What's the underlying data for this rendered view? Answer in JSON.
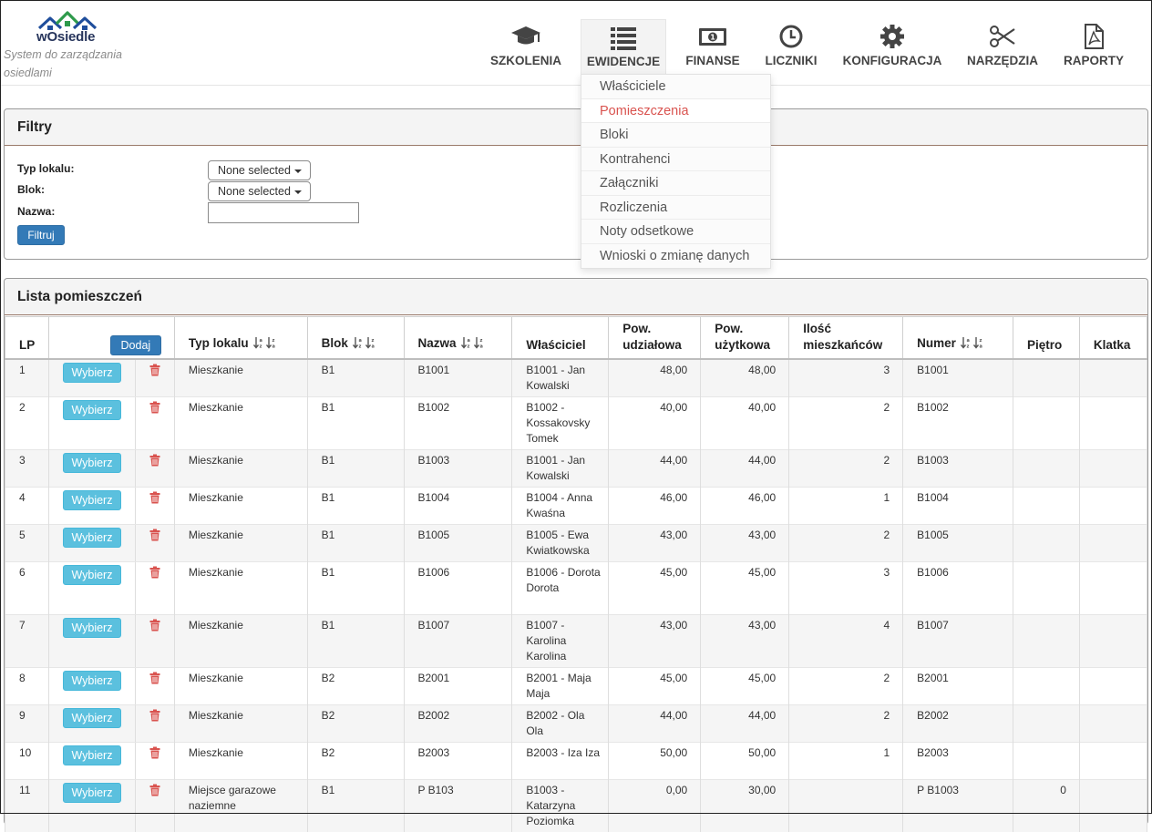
{
  "brand": {
    "name": "wOsiedle",
    "tagline": "System do zarządzania osiedlami"
  },
  "nav": [
    {
      "label": "SZKOLENIA",
      "icon": "graduation-cap-icon"
    },
    {
      "label": "EWIDENCJE",
      "icon": "list-icon",
      "active": true
    },
    {
      "label": "FINANSE",
      "icon": "banknote-icon"
    },
    {
      "label": "LICZNIKI",
      "icon": "clock-icon"
    },
    {
      "label": "KONFIGURACJA",
      "icon": "gear-icon"
    },
    {
      "label": "NARZĘDZIA",
      "icon": "scissors-icon"
    },
    {
      "label": "RAPORTY",
      "icon": "pdf-file-icon"
    }
  ],
  "dropdown": [
    "Właściciele",
    "Pomieszczenia",
    "Bloki",
    "Kontrahenci",
    "Załączniki",
    "Rozliczenia",
    "Noty odsetkowe",
    "Wnioski o zmianę danych"
  ],
  "dropdown_highlight": "Pomieszczenia",
  "filters": {
    "title": "Filtry",
    "typ_label": "Typ lokalu:",
    "blok_label": "Blok:",
    "nazwa_label": "Nazwa:",
    "typ_value": "None selected",
    "blok_value": "None selected",
    "nazwa_value": "",
    "submit": "Filtruj"
  },
  "list": {
    "title": "Lista pomieszczeń",
    "add": "Dodaj",
    "select": "Wybierz",
    "columns": {
      "lp": "LP",
      "typ": "Typ lokalu",
      "blok": "Blok",
      "nazwa": "Nazwa",
      "wlasciciel": "Właściciel",
      "pow_udz_1": "Pow.",
      "pow_udz_2": "udziałowa",
      "pow_uz_1": "Pow.",
      "pow_uz_2": "użytkowa",
      "ilosc_1": "Ilość",
      "ilosc_2": "mieszkańców",
      "numer": "Numer",
      "pietro": "Piętro",
      "klatka": "Klatka"
    },
    "rows": [
      {
        "lp": "1",
        "typ": "Mieszkanie",
        "blok": "B1",
        "nazwa": "B1001",
        "wlasciciel": "B1001 - Jan Kowalski",
        "pow_udz": "48,00",
        "pow_uz": "48,00",
        "ilosc": "3",
        "numer": "B1001",
        "pietro": "",
        "klatka": ""
      },
      {
        "lp": "2",
        "typ": "Mieszkanie",
        "blok": "B1",
        "nazwa": "B1002",
        "wlasciciel": "B1002 - Kossakovsky Tomek",
        "pow_udz": "40,00",
        "pow_uz": "40,00",
        "ilosc": "2",
        "numer": "B1002",
        "pietro": "",
        "klatka": ""
      },
      {
        "lp": "3",
        "typ": "Mieszkanie",
        "blok": "B1",
        "nazwa": "B1003",
        "wlasciciel": "B1001 - Jan Kowalski",
        "pow_udz": "44,00",
        "pow_uz": "44,00",
        "ilosc": "2",
        "numer": "B1003",
        "pietro": "",
        "klatka": ""
      },
      {
        "lp": "4",
        "typ": "Mieszkanie",
        "blok": "B1",
        "nazwa": "B1004",
        "wlasciciel": "B1004 - Anna Kwaśna",
        "pow_udz": "46,00",
        "pow_uz": "46,00",
        "ilosc": "1",
        "numer": "B1004",
        "pietro": "",
        "klatka": ""
      },
      {
        "lp": "5",
        "typ": "Mieszkanie",
        "blok": "B1",
        "nazwa": "B1005",
        "wlasciciel": "B1005 - Ewa Kwiatkowska",
        "pow_udz": "43,00",
        "pow_uz": "43,00",
        "ilosc": "2",
        "numer": "B1005",
        "pietro": "",
        "klatka": ""
      },
      {
        "lp": "6",
        "typ": "Mieszkanie",
        "blok": "B1",
        "nazwa": "B1006",
        "wlasciciel": "B1006 - Dorota Dorota",
        "pow_udz": "45,00",
        "pow_uz": "45,00",
        "ilosc": "3",
        "numer": "B1006",
        "pietro": "",
        "klatka": ""
      },
      {
        "lp": "7",
        "typ": "Mieszkanie",
        "blok": "B1",
        "nazwa": "B1007",
        "wlasciciel": "B1007 - Karolina Karolina",
        "pow_udz": "43,00",
        "pow_uz": "43,00",
        "ilosc": "4",
        "numer": "B1007",
        "pietro": "",
        "klatka": ""
      },
      {
        "lp": "8",
        "typ": "Mieszkanie",
        "blok": "B2",
        "nazwa": "B2001",
        "wlasciciel": "B2001 - Maja Maja",
        "pow_udz": "45,00",
        "pow_uz": "45,00",
        "ilosc": "2",
        "numer": "B2001",
        "pietro": "",
        "klatka": ""
      },
      {
        "lp": "9",
        "typ": "Mieszkanie",
        "blok": "B2",
        "nazwa": "B2002",
        "wlasciciel": "B2002 - Ola Ola",
        "pow_udz": "44,00",
        "pow_uz": "44,00",
        "ilosc": "2",
        "numer": "B2002",
        "pietro": "",
        "klatka": ""
      },
      {
        "lp": "10",
        "typ": "Mieszkanie",
        "blok": "B2",
        "nazwa": "B2003",
        "wlasciciel": "B2003 - Iza Iza",
        "pow_udz": "50,00",
        "pow_uz": "50,00",
        "ilosc": "1",
        "numer": "B2003",
        "pietro": "",
        "klatka": ""
      },
      {
        "lp": "11",
        "typ": "Miejsce garazowe naziemne",
        "blok": "B1",
        "nazwa": "P B103",
        "wlasciciel": "B1003 - Katarzyna Poziomka",
        "pow_udz": "0,00",
        "pow_uz": "30,00",
        "ilosc": "",
        "numer": "P B1003",
        "pietro": "0",
        "klatka": ""
      }
    ]
  },
  "colors": {
    "primary": "#337ab7",
    "info": "#5bc0de",
    "danger": "#d9534f",
    "logo_blue": "#1f4e9c",
    "logo_green": "#2e9a4b"
  }
}
